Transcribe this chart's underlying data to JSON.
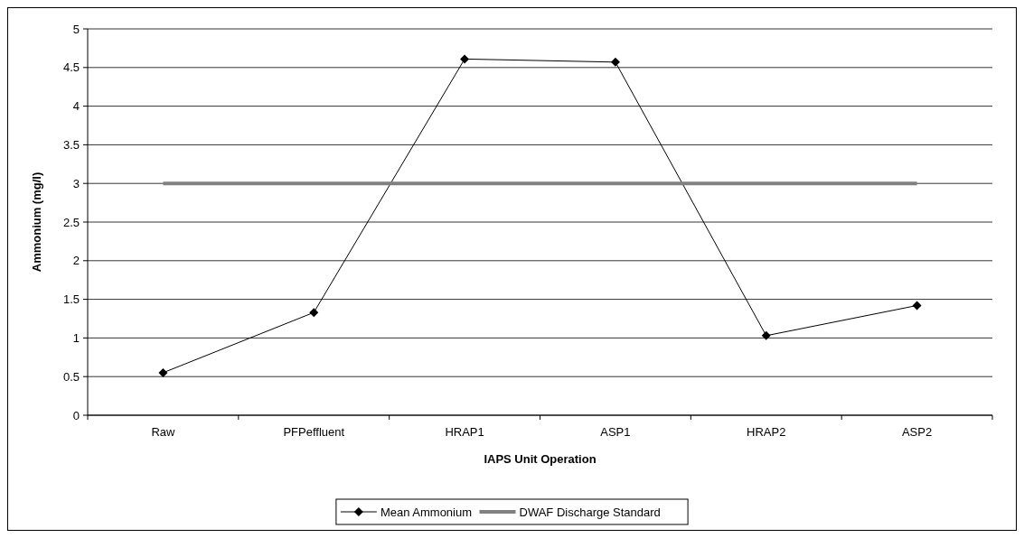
{
  "chart_data": {
    "type": "line",
    "xlabel": "IAPS Unit Operation",
    "ylabel": "Ammonium (mg/l)",
    "categories": [
      "Raw",
      "PFPeffluent",
      "HRAP1",
      "ASP1",
      "HRAP2",
      "ASP2"
    ],
    "series": [
      {
        "name": "Mean Ammonium",
        "color": "#000000",
        "values": [
          0.55,
          1.33,
          4.61,
          4.57,
          1.03,
          1.42
        ],
        "marker": "diamond"
      },
      {
        "name": "DWAF Discharge Standard",
        "color": "#808080",
        "values": [
          3,
          3,
          3,
          3,
          3,
          3
        ],
        "marker": "none"
      }
    ],
    "ylim": [
      0,
      5
    ],
    "yticks": [
      0,
      0.5,
      1,
      1.5,
      2,
      2.5,
      3,
      3.5,
      4,
      4.5,
      5
    ],
    "grid": "y",
    "legend": "bottom",
    "line_style": "solid"
  }
}
